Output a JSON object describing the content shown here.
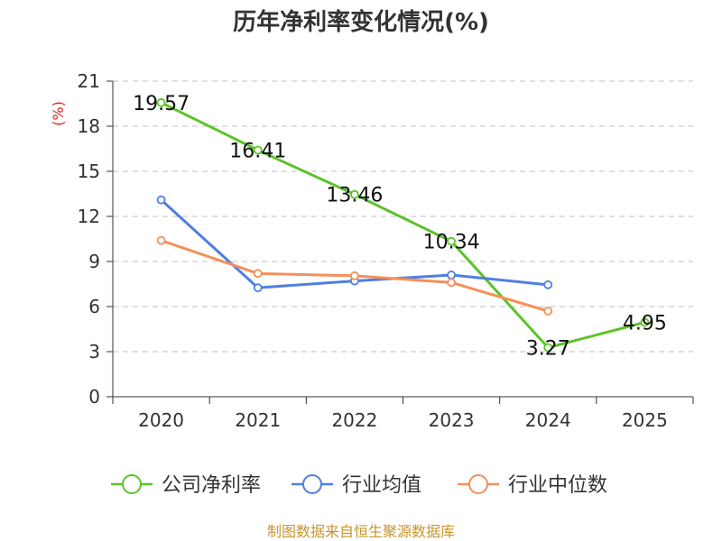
{
  "chart_data": {
    "type": "line",
    "title": "历年净利率变化情况(%)",
    "ylabel": "(%)",
    "xlabel": "",
    "categories": [
      "2020",
      "2021",
      "2022",
      "2023",
      "2024",
      "2025"
    ],
    "ylim": [
      0,
      21
    ],
    "yticks": [
      0,
      3,
      6,
      9,
      12,
      15,
      18,
      21
    ],
    "grid": "horizontal-dashed",
    "legend_position": "bottom",
    "series": [
      {
        "name": "公司净利率",
        "color": "#5ec22a",
        "values": [
          19.57,
          16.41,
          13.46,
          10.34,
          3.27,
          4.95
        ],
        "labels": [
          "19.57",
          "16.41",
          "13.46",
          "10.34",
          "3.27",
          "4.95"
        ]
      },
      {
        "name": "行业均值",
        "color": "#4f7fe0",
        "values": [
          13.1,
          7.25,
          7.7,
          8.1,
          7.45,
          null
        ]
      },
      {
        "name": "行业中位数",
        "color": "#f4905c",
        "values": [
          10.4,
          8.2,
          8.05,
          7.6,
          5.7,
          null
        ]
      }
    ]
  },
  "source": "制图数据来自恒生聚源数据库"
}
